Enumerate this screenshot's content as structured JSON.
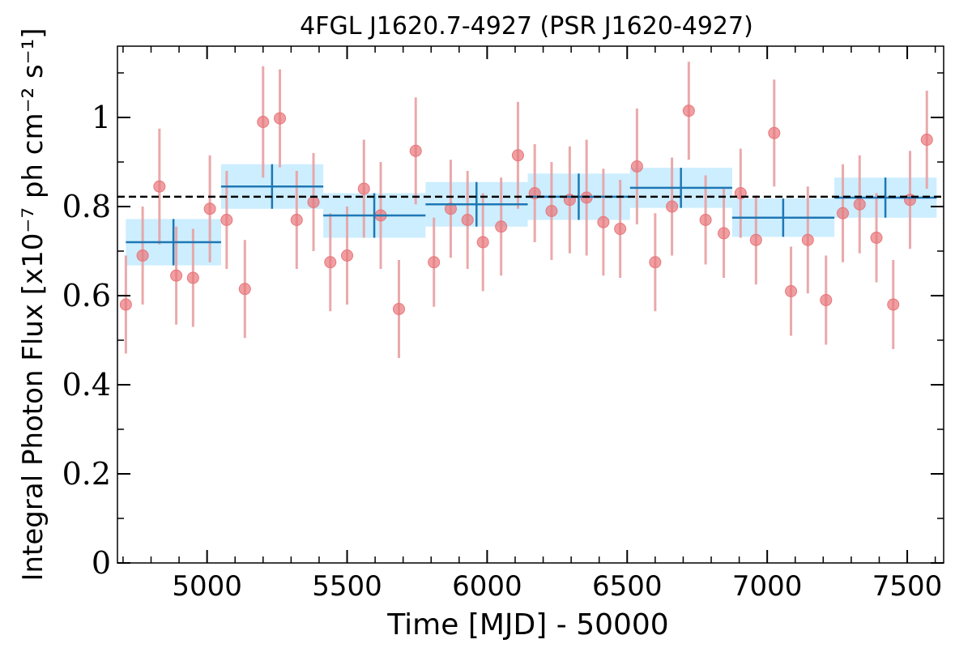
{
  "chart_data": {
    "type": "scatter",
    "title": "4FGL J1620.7-4927 (PSR J1620-4927)",
    "xlabel": "Time [MJD] - 50000",
    "ylabel": "Integral Photon Flux [x10⁻⁷ ph cm⁻² s⁻¹]",
    "xlim": [
      4680,
      7630
    ],
    "ylim": [
      0,
      1.16
    ],
    "xticks": [
      5000,
      5500,
      6000,
      6500,
      7000,
      7500
    ],
    "xtick_labels": [
      "5000",
      "5500",
      "6000",
      "6500",
      "7000",
      "7500"
    ],
    "yticks": [
      0,
      0.2,
      0.4,
      0.6,
      0.8,
      1.0
    ],
    "ytick_labels": [
      "0",
      "0.2",
      "0.4",
      "0.6",
      "0.8",
      "1"
    ],
    "mean_flux": 0.822,
    "colors": {
      "points": "#e8767a",
      "errorbars": "#e8a0a2",
      "bins": "#1f77b4",
      "band": "#cceeff",
      "mean_line": "#000000"
    },
    "series": [
      {
        "kind": "points",
        "x": [
          4710,
          4770,
          4830,
          4890,
          4950,
          5010,
          5070,
          5135,
          5200,
          5260,
          5320,
          5380,
          5440,
          5500,
          5560,
          5620,
          5685,
          5745,
          5810,
          5870,
          5930,
          5985,
          6050,
          6110,
          6170,
          6230,
          6295,
          6355,
          6415,
          6475,
          6535,
          6600,
          6660,
          6720,
          6780,
          6845,
          6905,
          6960,
          7025,
          7085,
          7145,
          7210,
          7270,
          7330,
          7390,
          7450,
          7510,
          7570
        ],
        "y": [
          0.58,
          0.69,
          0.845,
          0.645,
          0.64,
          0.795,
          0.77,
          0.615,
          0.99,
          0.998,
          0.77,
          0.81,
          0.675,
          0.69,
          0.84,
          0.78,
          0.57,
          0.925,
          0.675,
          0.795,
          0.77,
          0.72,
          0.755,
          0.915,
          0.83,
          0.79,
          0.815,
          0.82,
          0.765,
          0.75,
          0.89,
          0.675,
          0.8,
          1.015,
          0.77,
          0.74,
          0.83,
          0.725,
          0.965,
          0.61,
          0.725,
          0.59,
          0.785,
          0.805,
          0.73,
          0.58,
          0.815,
          0.95
        ],
        "yerr": [
          0.11,
          0.11,
          0.13,
          0.11,
          0.11,
          0.12,
          0.11,
          0.11,
          0.125,
          0.11,
          0.11,
          0.11,
          0.11,
          0.11,
          0.11,
          0.12,
          0.11,
          0.12,
          0.1,
          0.11,
          0.11,
          0.11,
          0.11,
          0.12,
          0.11,
          0.11,
          0.12,
          0.13,
          0.12,
          0.11,
          0.13,
          0.11,
          0.11,
          0.11,
          0.1,
          0.1,
          0.1,
          0.1,
          0.12,
          0.1,
          0.12,
          0.1,
          0.11,
          0.11,
          0.1,
          0.1,
          0.11,
          0.11
        ]
      },
      {
        "kind": "bins",
        "x_start": [
          4710,
          5050,
          5415,
          5780,
          6145,
          6510,
          6875,
          7240
        ],
        "x_end": [
          5050,
          5415,
          5780,
          6145,
          6510,
          6875,
          7240,
          7605
        ],
        "x_center": [
          4880,
          5232,
          5597,
          5962,
          6327,
          6692,
          7057,
          7422
        ],
        "y": [
          0.72,
          0.845,
          0.78,
          0.805,
          0.822,
          0.842,
          0.775,
          0.82
        ],
        "yerr": [
          0.052,
          0.05,
          0.05,
          0.05,
          0.052,
          0.045,
          0.043,
          0.045
        ]
      }
    ]
  }
}
